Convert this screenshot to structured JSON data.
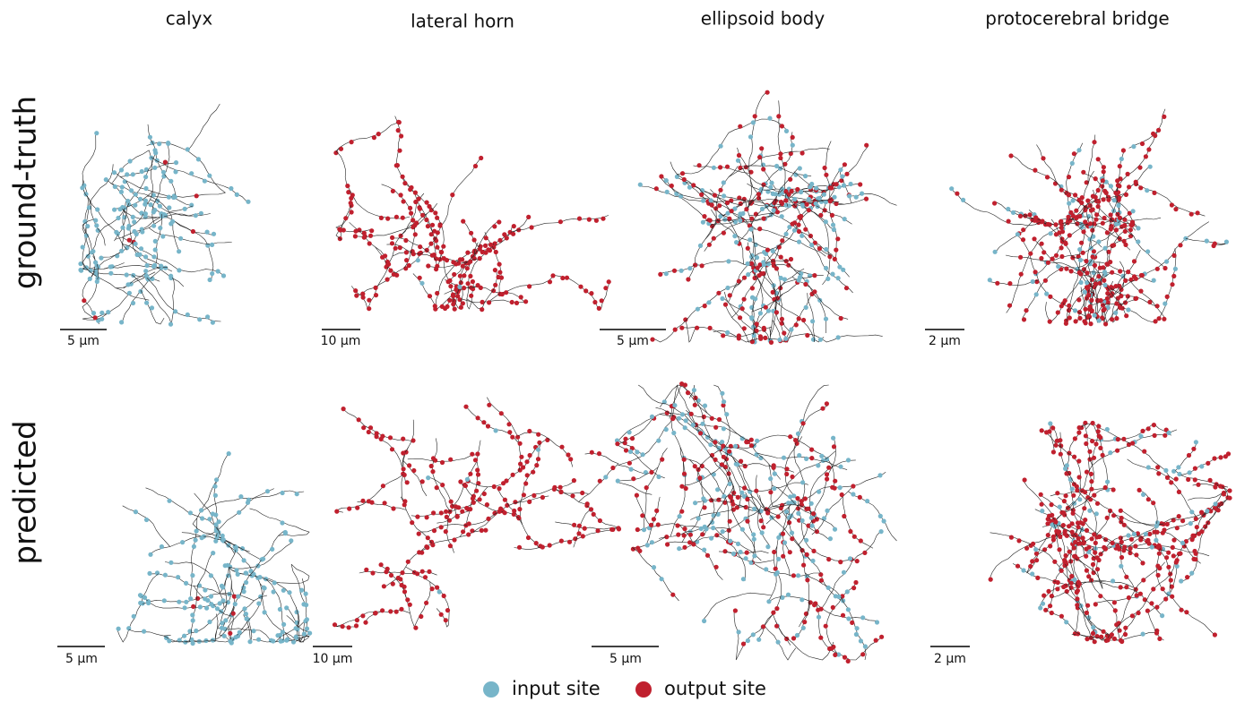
{
  "columns": [
    "calyx",
    "lateral horn",
    "ellipsoid body",
    "protocerebral bridge"
  ],
  "rows": [
    "ground-truth",
    "predicted"
  ],
  "scale_bars": [
    [
      "5 µm",
      "10 µm",
      "5 µm",
      "2 µm"
    ],
    [
      "5 µm",
      "10 µm",
      "5 µm",
      "2 µm"
    ]
  ],
  "legend": [
    "input site",
    "output site"
  ]
}
